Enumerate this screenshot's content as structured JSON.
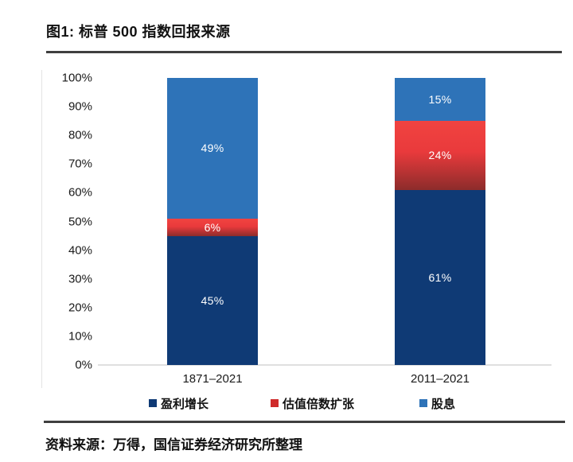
{
  "figure": {
    "title": "图1: 标普 500 指数回报来源",
    "source": "资料来源：万得，国信证券经济研究所整理"
  },
  "chart_data": {
    "type": "bar",
    "stacked": true,
    "title": "标普 500 指数回报来源",
    "categories": [
      "1871–2021",
      "2011–2021"
    ],
    "series": [
      {
        "name": "盈利增长",
        "color": "#0f3a75",
        "values": [
          45,
          61
        ]
      },
      {
        "name": "估值倍数扩张",
        "color": "#cf2b2b",
        "gradient": [
          "#f14340",
          "#e93a3c",
          "#8c2c2b"
        ],
        "values": [
          6,
          24
        ]
      },
      {
        "name": "股息",
        "color": "#2e73b8",
        "values": [
          49,
          15
        ]
      }
    ],
    "value_labels": [
      [
        "45%",
        "6%",
        "49%"
      ],
      [
        "61%",
        "24%",
        "15%"
      ]
    ],
    "y_ticks": [
      "100%",
      "90%",
      "80%",
      "70%",
      "60%",
      "50%",
      "40%",
      "30%",
      "20%",
      "10%",
      "0%"
    ],
    "ylim": [
      0,
      100
    ],
    "grid": false,
    "legend_position": "bottom",
    "bar_value_label_color": "#ffffff",
    "axis_line_color": "#dfdfdf"
  }
}
